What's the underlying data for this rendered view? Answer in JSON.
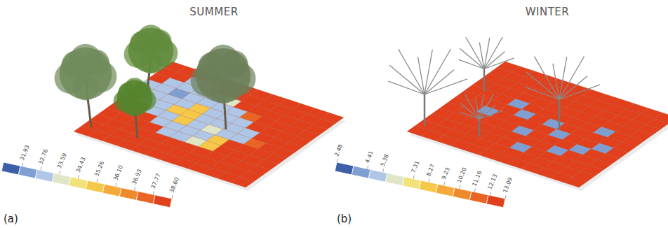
{
  "chart_data": [
    {
      "type": "heatmap",
      "title": "SUMMER",
      "panel_label": "(a)",
      "colorbar": {
        "range": [
          31.1,
          38.6
        ],
        "ticks": [
          31.93,
          32.76,
          33.59,
          34.43,
          35.26,
          {
            "value": 36.1,
            "label": "36.10"
          },
          36.93,
          37.77,
          {
            "value": 38.6,
            "label": "38.60"
          }
        ]
      },
      "cells": [
        [
          38.6,
          38.6,
          38.6,
          38.6,
          38.6,
          38.6,
          38.6,
          38.6,
          38.6,
          38.6,
          38.6,
          38.6
        ],
        [
          38.6,
          38.6,
          32.76,
          32.76,
          38.6,
          38.6,
          38.6,
          38.6,
          38.6,
          38.6,
          38.6,
          38.6
        ],
        [
          38.6,
          32.76,
          32.76,
          32.76,
          32.76,
          33.59,
          38.6,
          38.6,
          38.6,
          38.6,
          38.6,
          38.6
        ],
        [
          32.76,
          32.76,
          31.93,
          32.76,
          32.76,
          32.76,
          32.76,
          37.77,
          38.6,
          38.6,
          38.6,
          38.6
        ],
        [
          32.76,
          32.76,
          32.76,
          32.76,
          35.26,
          32.76,
          32.76,
          32.76,
          38.6,
          38.6,
          38.6,
          38.6
        ],
        [
          38.6,
          32.76,
          32.76,
          35.26,
          35.26,
          32.76,
          32.76,
          32.76,
          32.76,
          38.6,
          38.6,
          38.6
        ],
        [
          38.6,
          38.6,
          32.76,
          32.76,
          35.26,
          32.76,
          33.59,
          32.76,
          32.76,
          37.77,
          38.6,
          38.6
        ],
        [
          38.6,
          38.6,
          38.6,
          32.76,
          32.76,
          32.76,
          32.76,
          35.26,
          38.6,
          38.6,
          38.6,
          38.6
        ],
        [
          38.6,
          38.6,
          38.6,
          38.6,
          32.76,
          32.76,
          33.59,
          35.26,
          38.6,
          38.6,
          38.6,
          38.6
        ],
        [
          38.6,
          38.6,
          38.6,
          38.6,
          38.6,
          38.6,
          38.6,
          38.6,
          38.6,
          38.6,
          38.6,
          38.6
        ],
        [
          38.6,
          38.6,
          38.6,
          38.6,
          38.6,
          38.6,
          38.6,
          38.6,
          38.6,
          38.6,
          38.6,
          38.6
        ],
        [
          38.6,
          38.6,
          38.6,
          38.6,
          38.6,
          38.6,
          38.6,
          38.6,
          38.6,
          38.6,
          38.6,
          38.6
        ]
      ]
    },
    {
      "type": "heatmap",
      "title": "WINTER",
      "panel_label": "(b)",
      "colorbar": {
        "range": [
          2.48,
          13.09
        ],
        "ticks": [
          2.48,
          4.41,
          5.38,
          7.31,
          8.27,
          9.23,
          {
            "value": 10.2,
            "label": "10.20"
          },
          11.16,
          12.13,
          13.09
        ]
      },
      "cells": [
        [
          13.09,
          13.09,
          13.09,
          13.09,
          13.09,
          13.09,
          13.09,
          13.09,
          13.09,
          13.09,
          13.09,
          13.09
        ],
        [
          13.09,
          13.09,
          13.09,
          13.09,
          13.09,
          13.09,
          13.09,
          13.09,
          13.09,
          13.09,
          13.09,
          13.09
        ],
        [
          13.09,
          13.09,
          13.09,
          13.09,
          13.09,
          13.09,
          13.09,
          13.09,
          13.09,
          13.09,
          13.09,
          13.09
        ],
        [
          13.09,
          13.09,
          13.09,
          13.09,
          13.09,
          13.09,
          13.09,
          13.09,
          13.09,
          13.09,
          13.09,
          13.09
        ],
        [
          13.09,
          13.09,
          13.09,
          4.41,
          13.09,
          13.09,
          13.09,
          13.09,
          13.09,
          4.41,
          13.09,
          13.09
        ],
        [
          13.09,
          13.09,
          13.09,
          13.09,
          4.41,
          13.09,
          4.41,
          13.09,
          13.09,
          13.09,
          13.09,
          13.09
        ],
        [
          13.09,
          13.09,
          4.41,
          13.09,
          13.09,
          13.09,
          13.09,
          4.41,
          13.09,
          13.09,
          4.41,
          13.09
        ],
        [
          13.09,
          13.09,
          13.09,
          13.09,
          13.09,
          4.41,
          13.09,
          13.09,
          13.09,
          4.41,
          13.09,
          13.09
        ],
        [
          13.09,
          13.09,
          13.09,
          13.09,
          13.09,
          13.09,
          13.09,
          13.09,
          4.41,
          13.09,
          13.09,
          13.09
        ],
        [
          13.09,
          13.09,
          13.09,
          13.09,
          13.09,
          13.09,
          4.41,
          13.09,
          13.09,
          13.09,
          13.09,
          13.09
        ],
        [
          13.09,
          13.09,
          13.09,
          13.09,
          13.09,
          13.09,
          13.09,
          13.09,
          13.09,
          13.09,
          13.09,
          13.09
        ],
        [
          13.09,
          13.09,
          13.09,
          13.09,
          13.09,
          13.09,
          13.09,
          13.09,
          13.09,
          13.09,
          13.09,
          13.09
        ]
      ]
    }
  ]
}
